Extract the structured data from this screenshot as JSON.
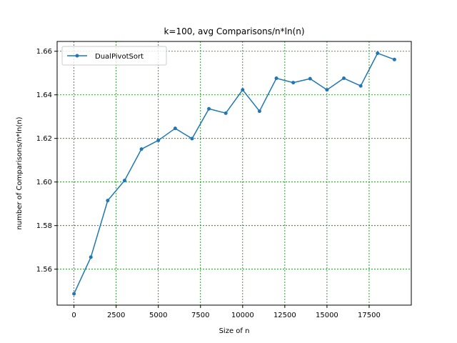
{
  "chart_data": {
    "type": "line",
    "title": "k=100, avg Comparisons/n*ln(n)",
    "xlabel": "Size of n",
    "ylabel": "number of Comparisons/n*ln(n)",
    "xlim": [
      -1000,
      20000
    ],
    "ylim": [
      1.5435,
      1.6645
    ],
    "xticks": [
      0,
      2500,
      5000,
      7500,
      10000,
      12500,
      15000,
      17500
    ],
    "xtick_labels": [
      "0",
      "2500",
      "5000",
      "7500",
      "10000",
      "12500",
      "15000",
      "17500"
    ],
    "yticks": [
      1.56,
      1.58,
      1.6,
      1.62,
      1.64,
      1.66
    ],
    "ytick_labels": [
      "1.56",
      "1.58",
      "1.60",
      "1.62",
      "1.64",
      "1.66"
    ],
    "grid": true,
    "grid_color": "#008000",
    "legend_position": "upper-left",
    "series": [
      {
        "name": "DualPivotSort",
        "color": "#1f77b4",
        "marker": "circle",
        "x": [
          0,
          1000,
          2000,
          3000,
          4000,
          5000,
          6000,
          7000,
          8000,
          9000,
          10000,
          11000,
          12000,
          13000,
          14000,
          15000,
          16000,
          17000,
          18000,
          19000
        ],
        "y": [
          1.5487,
          1.5655,
          1.5915,
          1.6007,
          1.6151,
          1.6191,
          1.6246,
          1.6199,
          1.6336,
          1.6316,
          1.6423,
          1.6325,
          1.6476,
          1.6456,
          1.6474,
          1.6423,
          1.6476,
          1.6441,
          1.6591,
          1.6562
        ]
      }
    ]
  }
}
